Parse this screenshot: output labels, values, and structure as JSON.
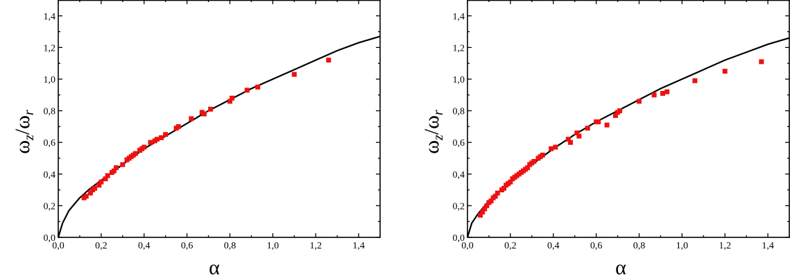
{
  "chart_data": [
    {
      "type": "scatter",
      "xlabel": "α",
      "ylabel_main": "ω",
      "ylabel_sub1": "z",
      "ylabel_slash": "/",
      "ylabel_sub2": "r",
      "xlim": [
        0,
        1.5
      ],
      "ylim": [
        0,
        1.5
      ],
      "xticks": [
        "0,0",
        "0,2",
        "0,4",
        "0,6",
        "0,8",
        "1,0",
        "1,2",
        "1,4"
      ],
      "yticks": [
        "0,0",
        "0,2",
        "0,4",
        "0,6",
        "0,8",
        "1,0",
        "1,2",
        "1,4"
      ],
      "grid": false,
      "legend": "none",
      "marker_color": "#ee1111",
      "line_color": "#000000",
      "curve": {
        "name": "",
        "x": [
          0.0,
          0.02,
          0.05,
          0.1,
          0.15,
          0.2,
          0.3,
          0.4,
          0.5,
          0.6,
          0.7,
          0.8,
          0.9,
          1.0,
          1.1,
          1.2,
          1.3,
          1.4,
          1.5
        ],
        "y": [
          0.0,
          0.09,
          0.17,
          0.25,
          0.31,
          0.36,
          0.46,
          0.56,
          0.64,
          0.72,
          0.8,
          0.87,
          0.94,
          1.0,
          1.06,
          1.12,
          1.18,
          1.23,
          1.27
        ]
      },
      "series": [
        {
          "name": "",
          "x": [
            0.12,
            0.13,
            0.15,
            0.16,
            0.17,
            0.19,
            0.2,
            0.22,
            0.23,
            0.25,
            0.26,
            0.27,
            0.3,
            0.32,
            0.33,
            0.34,
            0.35,
            0.36,
            0.38,
            0.39,
            0.4,
            0.43,
            0.45,
            0.46,
            0.48,
            0.5,
            0.55,
            0.56,
            0.62,
            0.67,
            0.68,
            0.71,
            0.8,
            0.81,
            0.88,
            0.93,
            1.1,
            1.26
          ],
          "y": [
            0.25,
            0.26,
            0.28,
            0.3,
            0.31,
            0.33,
            0.35,
            0.37,
            0.39,
            0.41,
            0.42,
            0.44,
            0.46,
            0.49,
            0.5,
            0.51,
            0.52,
            0.53,
            0.55,
            0.56,
            0.57,
            0.6,
            0.61,
            0.62,
            0.63,
            0.65,
            0.69,
            0.7,
            0.75,
            0.79,
            0.78,
            0.81,
            0.86,
            0.88,
            0.93,
            0.95,
            1.03,
            1.12
          ]
        }
      ]
    },
    {
      "type": "scatter",
      "xlabel": "α",
      "ylabel_main": "ω",
      "ylabel_sub1": "z",
      "ylabel_slash": "/",
      "ylabel_sub2": "r",
      "xlim": [
        0,
        1.5
      ],
      "ylim": [
        0,
        1.5
      ],
      "xticks": [
        "0,0",
        "0,2",
        "0,4",
        "0,6",
        "0,8",
        "1,0",
        "1,2",
        "1,4"
      ],
      "yticks": [
        "0,0",
        "0,2",
        "0,4",
        "0,6",
        "0,8",
        "1,0",
        "1,2",
        "1,4"
      ],
      "grid": false,
      "legend": "none",
      "marker_color": "#ee1111",
      "line_color": "#000000",
      "curve": {
        "name": "",
        "x": [
          0.0,
          0.02,
          0.05,
          0.1,
          0.15,
          0.2,
          0.3,
          0.4,
          0.5,
          0.6,
          0.7,
          0.8,
          0.9,
          1.0,
          1.1,
          1.2,
          1.3,
          1.4,
          1.5
        ],
        "y": [
          0.0,
          0.09,
          0.15,
          0.23,
          0.29,
          0.35,
          0.46,
          0.56,
          0.65,
          0.73,
          0.8,
          0.87,
          0.94,
          1.0,
          1.06,
          1.12,
          1.17,
          1.22,
          1.26
        ]
      },
      "series": [
        {
          "name": "",
          "x": [
            0.06,
            0.07,
            0.08,
            0.09,
            0.1,
            0.11,
            0.12,
            0.13,
            0.14,
            0.16,
            0.17,
            0.18,
            0.19,
            0.2,
            0.21,
            0.22,
            0.23,
            0.24,
            0.25,
            0.26,
            0.27,
            0.28,
            0.29,
            0.3,
            0.31,
            0.33,
            0.34,
            0.35,
            0.39,
            0.41,
            0.47,
            0.48,
            0.51,
            0.52,
            0.56,
            0.6,
            0.61,
            0.65,
            0.69,
            0.7,
            0.71,
            0.8,
            0.87,
            0.91,
            0.93,
            1.06,
            1.2,
            1.37
          ],
          "y": [
            0.14,
            0.16,
            0.18,
            0.2,
            0.22,
            0.23,
            0.25,
            0.26,
            0.28,
            0.3,
            0.31,
            0.33,
            0.34,
            0.35,
            0.37,
            0.38,
            0.39,
            0.4,
            0.41,
            0.42,
            0.43,
            0.44,
            0.46,
            0.47,
            0.48,
            0.5,
            0.51,
            0.52,
            0.56,
            0.57,
            0.62,
            0.6,
            0.66,
            0.64,
            0.69,
            0.73,
            0.73,
            0.71,
            0.77,
            0.79,
            0.8,
            0.86,
            0.9,
            0.91,
            0.92,
            0.99,
            1.05,
            1.11
          ]
        }
      ]
    }
  ]
}
